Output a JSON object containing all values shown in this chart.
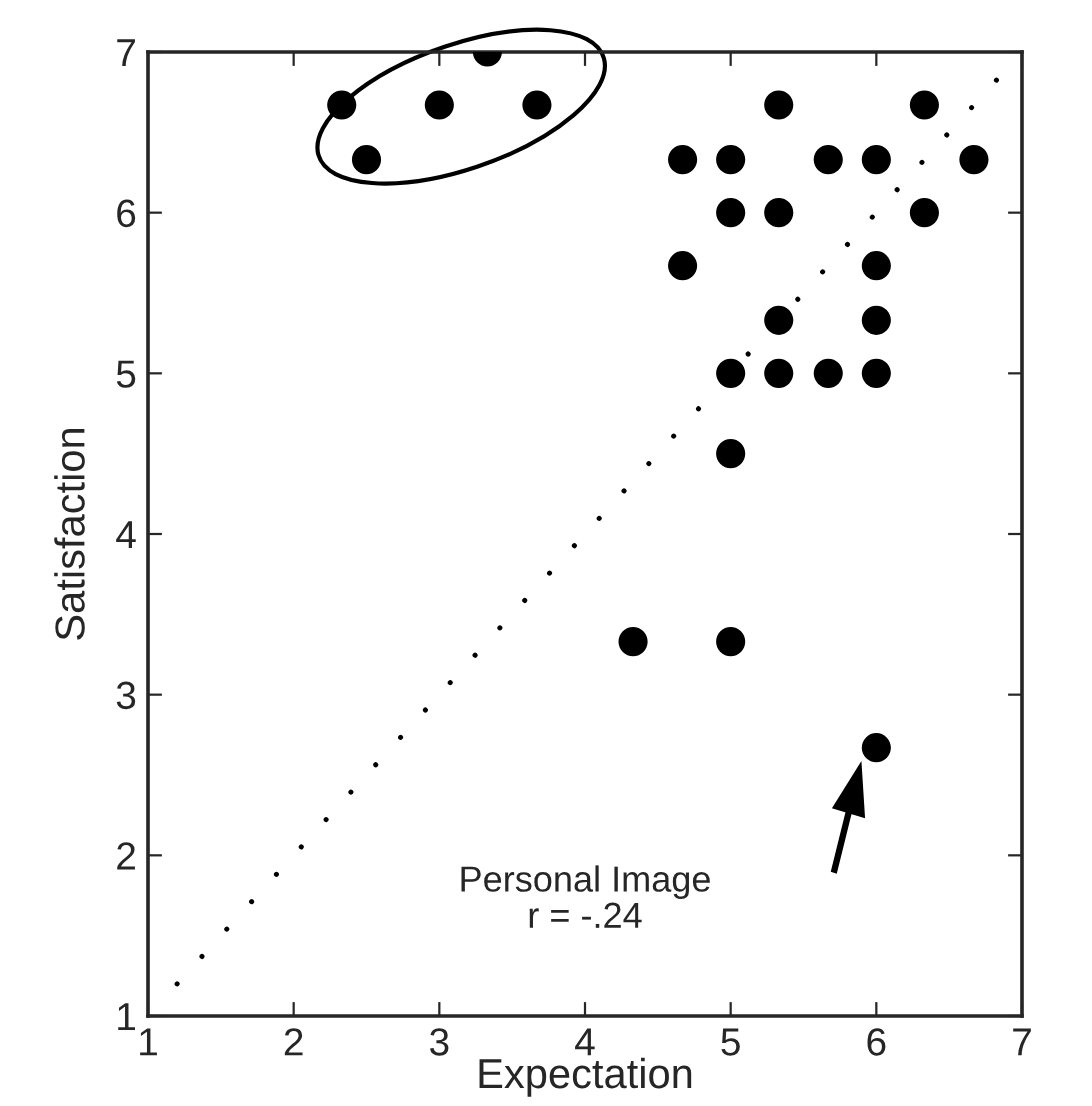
{
  "chart_data": {
    "type": "scatter",
    "xlabel": "Expectation",
    "ylabel": "Satisfaction",
    "annotations": [
      "Personal Image\nr = -.24"
    ],
    "xlim": [
      1,
      7
    ],
    "ylim": [
      1,
      7
    ],
    "xticks": [
      1,
      2,
      3,
      4,
      5,
      6,
      7
    ],
    "yticks": [
      1,
      2,
      3,
      4,
      5,
      6,
      7
    ],
    "grid": false,
    "legend": false,
    "series": [
      {
        "type": "scatter",
        "color": "#000000",
        "marker": "circle",
        "x": [
          2.33,
          2.5,
          3.0,
          3.33,
          3.67,
          4.67,
          5.0,
          5.33,
          5.67,
          6.0,
          6.33,
          6.67,
          5.0,
          5.33,
          6.33,
          4.67,
          6.0,
          5.33,
          6.0,
          5.0,
          5.33,
          5.67,
          6.0,
          5.0,
          4.33,
          5.0,
          6.0
        ],
        "values": [
          6.67,
          6.33,
          6.67,
          7.0,
          6.67,
          6.33,
          6.33,
          6.67,
          6.33,
          6.33,
          6.67,
          6.33,
          6.0,
          6.0,
          6.0,
          5.67,
          5.67,
          5.33,
          5.33,
          5.0,
          5.0,
          5.0,
          5.0,
          4.5,
          3.33,
          3.33,
          2.67
        ]
      },
      {
        "type": "line",
        "color": "#000000",
        "line_style": "dotted",
        "x": [
          1.2,
          6.85
        ],
        "values": [
          1.2,
          6.85
        ]
      }
    ]
  }
}
